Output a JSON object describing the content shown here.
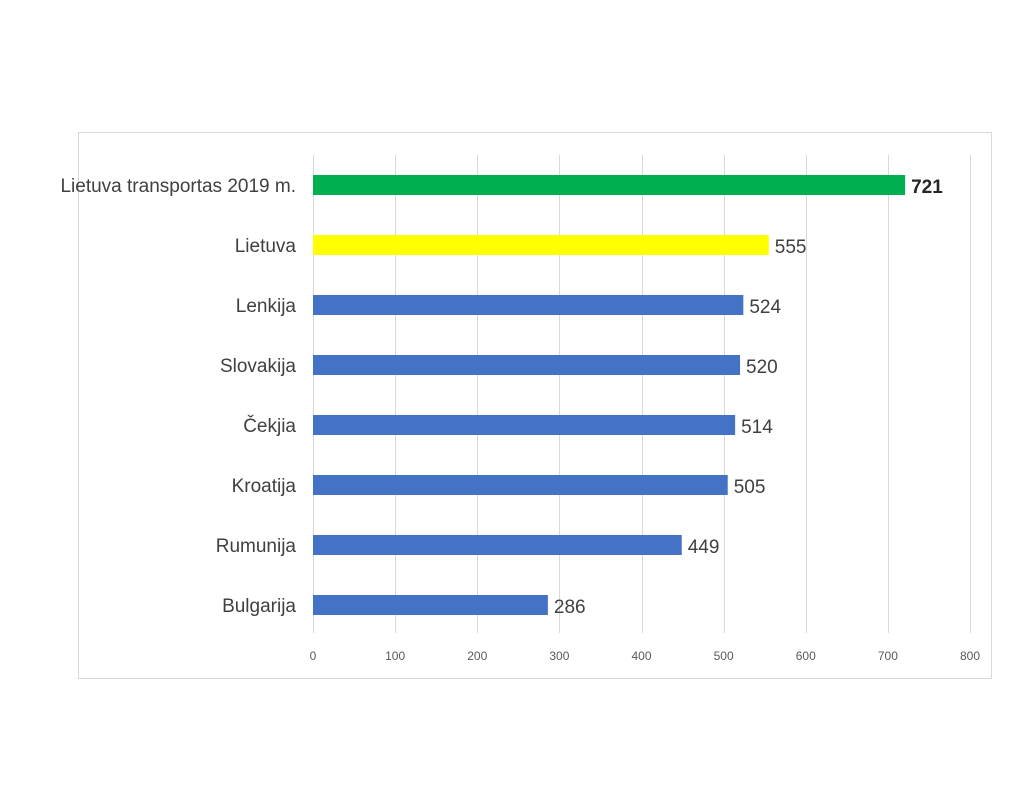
{
  "chart_data": {
    "type": "bar",
    "orientation": "horizontal",
    "title": "",
    "xlabel": "",
    "ylabel": "",
    "xlim": [
      0,
      800
    ],
    "ticks": [
      0,
      100,
      200,
      300,
      400,
      500,
      600,
      700,
      800
    ],
    "grid": true,
    "legend": "none",
    "categories": [
      "Lietuva transportas 2019 m.",
      "Lietuva",
      "Lenkija",
      "Slovakija",
      "Čekjia",
      "Kroatija",
      "Rumunija",
      "Bulgarija"
    ],
    "values": [
      721,
      555,
      524,
      520,
      514,
      505,
      449,
      286
    ],
    "colors": [
      "#00b050",
      "#ffff00",
      "#4472c4",
      "#4472c4",
      "#4472c4",
      "#4472c4",
      "#4472c4",
      "#4472c4"
    ],
    "bold_value_labels": [
      true,
      false,
      false,
      false,
      false,
      false,
      false,
      false
    ]
  }
}
